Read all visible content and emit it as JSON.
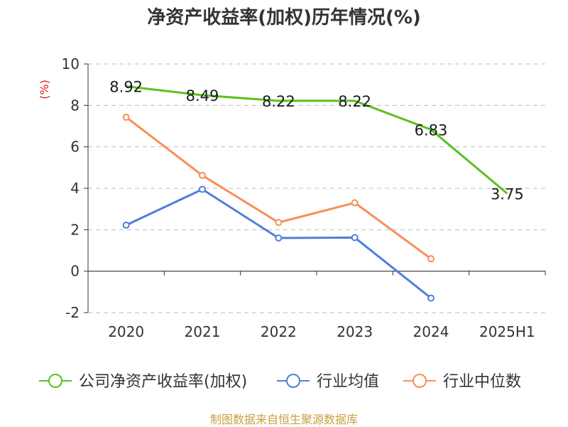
{
  "chart_data": {
    "type": "line",
    "title": "净资产收益率(加权)历年情况(%)",
    "unit_label": "(%)",
    "categories": [
      "2020",
      "2021",
      "2022",
      "2023",
      "2024",
      "2025H1"
    ],
    "ylim": [
      -2,
      10
    ],
    "yticks": [
      "10",
      "8",
      "6",
      "4",
      "2",
      "0",
      "-2"
    ],
    "grid": true,
    "legend_position": "bottom",
    "series": [
      {
        "name": "公司净资产收益率(加权)",
        "color": "#5cc01e",
        "values": [
          8.92,
          8.49,
          8.22,
          8.22,
          6.83,
          3.75
        ],
        "labels": [
          "8.92",
          "8.49",
          "8.22",
          "8.22",
          "6.83",
          "3.75"
        ]
      },
      {
        "name": "行业均值",
        "color": "#4f7fd9",
        "values": [
          2.22,
          3.95,
          1.6,
          1.62,
          -1.3,
          null
        ]
      },
      {
        "name": "行业中位数",
        "color": "#f59055",
        "values": [
          7.43,
          4.62,
          2.35,
          3.3,
          0.6,
          null
        ]
      }
    ]
  },
  "source_note": "制图数据来自恒生聚源数据库"
}
